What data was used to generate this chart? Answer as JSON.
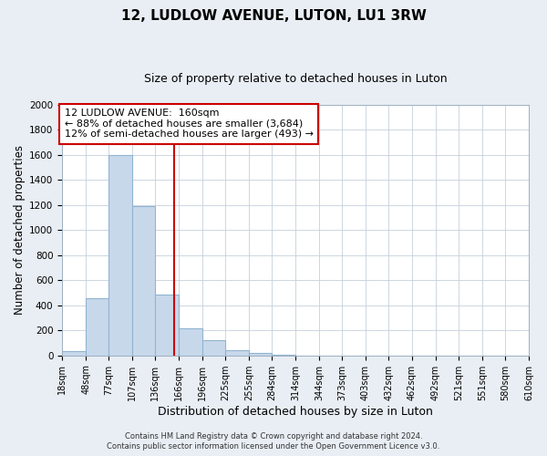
{
  "title": "12, LUDLOW AVENUE, LUTON, LU1 3RW",
  "subtitle": "Size of property relative to detached houses in Luton",
  "xlabel": "Distribution of detached houses by size in Luton",
  "ylabel": "Number of detached properties",
  "bin_edges": [
    18,
    48,
    77,
    107,
    136,
    166,
    196,
    225,
    255,
    284,
    314,
    344,
    373,
    403,
    432,
    462,
    492,
    521,
    551,
    580,
    610
  ],
  "bin_counts": [
    35,
    455,
    1600,
    1195,
    485,
    215,
    120,
    45,
    18,
    5,
    0,
    0,
    0,
    0,
    0,
    0,
    0,
    0,
    0,
    0
  ],
  "bar_color": "#c8d8eb",
  "bar_edgecolor": "#90b4d0",
  "property_size": 160,
  "vline_color": "#cc0000",
  "annotation_box_edgecolor": "#cc0000",
  "annotation_text_line1": "12 LUDLOW AVENUE:  160sqm",
  "annotation_text_line2": "← 88% of detached houses are smaller (3,684)",
  "annotation_text_line3": "12% of semi-detached houses are larger (493) →",
  "tick_labels": [
    "18sqm",
    "48sqm",
    "77sqm",
    "107sqm",
    "136sqm",
    "166sqm",
    "196sqm",
    "225sqm",
    "255sqm",
    "284sqm",
    "314sqm",
    "344sqm",
    "373sqm",
    "403sqm",
    "432sqm",
    "462sqm",
    "492sqm",
    "521sqm",
    "551sqm",
    "580sqm",
    "610sqm"
  ],
  "ylim": [
    0,
    2000
  ],
  "yticks": [
    0,
    200,
    400,
    600,
    800,
    1000,
    1200,
    1400,
    1600,
    1800,
    2000
  ],
  "footnote1": "Contains HM Land Registry data © Crown copyright and database right 2024.",
  "footnote2": "Contains public sector information licensed under the Open Government Licence v3.0.",
  "bg_color": "#e8eef4",
  "plot_bg_color": "#ffffff",
  "grid_color": "#c5d0dc",
  "title_fontsize": 11,
  "subtitle_fontsize": 9,
  "xlabel_fontsize": 9,
  "ylabel_fontsize": 8.5,
  "tick_fontsize": 7,
  "annotation_fontsize": 8,
  "footnote_fontsize": 6
}
